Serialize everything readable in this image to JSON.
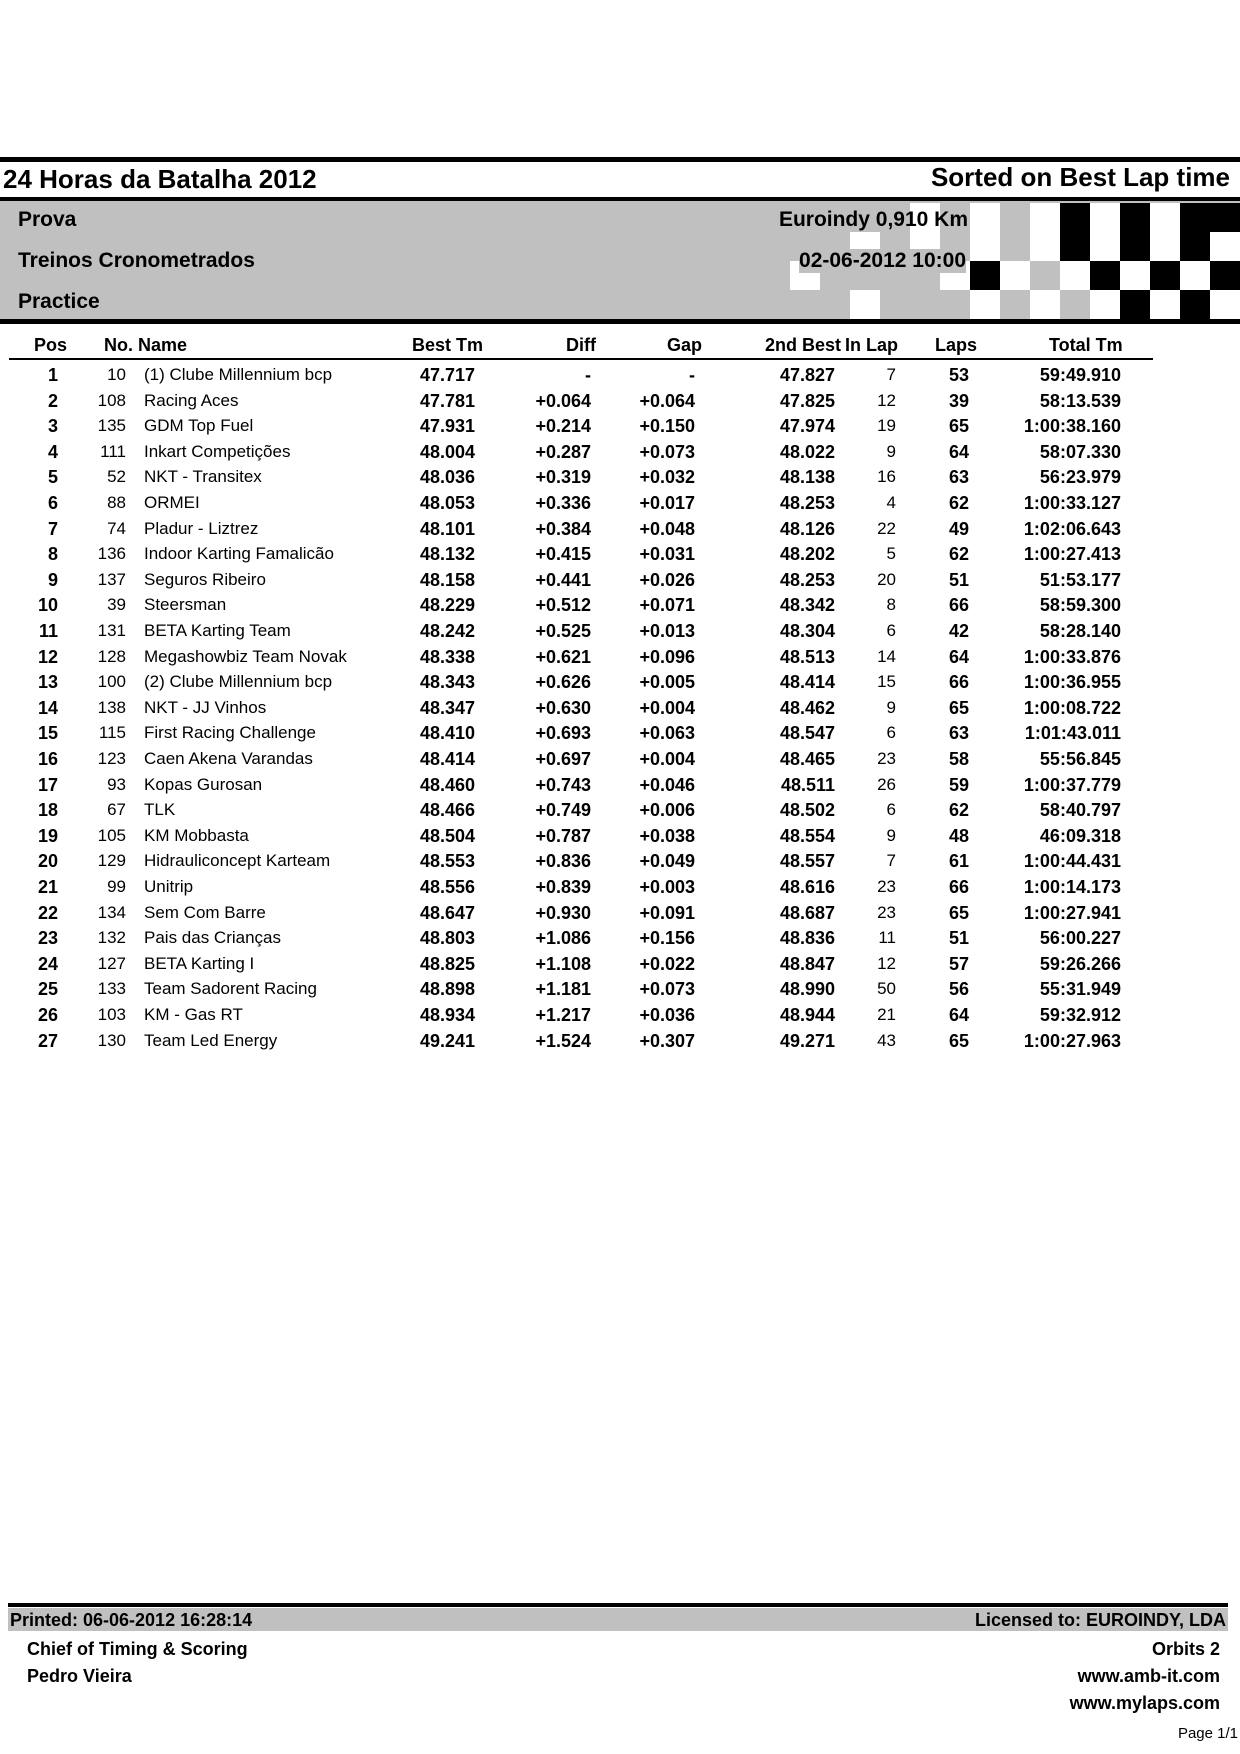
{
  "header": {
    "title": "24 Horas da Batalha 2012",
    "sort_label": "Sorted on Best Lap time",
    "event_type": "Prova",
    "session_name": "Treinos Cronometrados",
    "session_type": "Practice",
    "track": "Euroindy 0,910 Km",
    "datetime": "02-06-2012 10:00"
  },
  "table": {
    "columns": {
      "pos": "Pos",
      "no_name": "No. Name",
      "best": "Best Tm",
      "diff": "Diff",
      "gap": "Gap",
      "second_best": "2nd Best",
      "in_lap": "In Lap",
      "laps": "Laps",
      "total": "Total Tm"
    },
    "rows": [
      {
        "pos": "1",
        "no": "10",
        "name": "(1) Clube Millennium bcp",
        "best": "47.717",
        "diff": "-",
        "gap": "-",
        "second": "47.827",
        "inlap": "7",
        "laps": "53",
        "total": "59:49.910"
      },
      {
        "pos": "2",
        "no": "108",
        "name": "Racing Aces",
        "best": "47.781",
        "diff": "+0.064",
        "gap": "+0.064",
        "second": "47.825",
        "inlap": "12",
        "laps": "39",
        "total": "58:13.539"
      },
      {
        "pos": "3",
        "no": "135",
        "name": "GDM Top Fuel",
        "best": "47.931",
        "diff": "+0.214",
        "gap": "+0.150",
        "second": "47.974",
        "inlap": "19",
        "laps": "65",
        "total": "1:00:38.160"
      },
      {
        "pos": "4",
        "no": "111",
        "name": "Inkart Competições",
        "best": "48.004",
        "diff": "+0.287",
        "gap": "+0.073",
        "second": "48.022",
        "inlap": "9",
        "laps": "64",
        "total": "58:07.330"
      },
      {
        "pos": "5",
        "no": "52",
        "name": "NKT - Transitex",
        "best": "48.036",
        "diff": "+0.319",
        "gap": "+0.032",
        "second": "48.138",
        "inlap": "16",
        "laps": "63",
        "total": "56:23.979"
      },
      {
        "pos": "6",
        "no": "88",
        "name": "ORMEI",
        "best": "48.053",
        "diff": "+0.336",
        "gap": "+0.017",
        "second": "48.253",
        "inlap": "4",
        "laps": "62",
        "total": "1:00:33.127"
      },
      {
        "pos": "7",
        "no": "74",
        "name": "Pladur - Liztrez",
        "best": "48.101",
        "diff": "+0.384",
        "gap": "+0.048",
        "second": "48.126",
        "inlap": "22",
        "laps": "49",
        "total": "1:02:06.643"
      },
      {
        "pos": "8",
        "no": "136",
        "name": "Indoor Karting Famalicão",
        "best": "48.132",
        "diff": "+0.415",
        "gap": "+0.031",
        "second": "48.202",
        "inlap": "5",
        "laps": "62",
        "total": "1:00:27.413"
      },
      {
        "pos": "9",
        "no": "137",
        "name": "Seguros Ribeiro",
        "best": "48.158",
        "diff": "+0.441",
        "gap": "+0.026",
        "second": "48.253",
        "inlap": "20",
        "laps": "51",
        "total": "51:53.177"
      },
      {
        "pos": "10",
        "no": "39",
        "name": "Steersman",
        "best": "48.229",
        "diff": "+0.512",
        "gap": "+0.071",
        "second": "48.342",
        "inlap": "8",
        "laps": "66",
        "total": "58:59.300"
      },
      {
        "pos": "11",
        "no": "131",
        "name": "BETA Karting Team",
        "best": "48.242",
        "diff": "+0.525",
        "gap": "+0.013",
        "second": "48.304",
        "inlap": "6",
        "laps": "42",
        "total": "58:28.140"
      },
      {
        "pos": "12",
        "no": "128",
        "name": "Megashowbiz Team Novak",
        "best": "48.338",
        "diff": "+0.621",
        "gap": "+0.096",
        "second": "48.513",
        "inlap": "14",
        "laps": "64",
        "total": "1:00:33.876"
      },
      {
        "pos": "13",
        "no": "100",
        "name": "(2) Clube Millennium bcp",
        "best": "48.343",
        "diff": "+0.626",
        "gap": "+0.005",
        "second": "48.414",
        "inlap": "15",
        "laps": "66",
        "total": "1:00:36.955"
      },
      {
        "pos": "14",
        "no": "138",
        "name": "NKT - JJ Vinhos",
        "best": "48.347",
        "diff": "+0.630",
        "gap": "+0.004",
        "second": "48.462",
        "inlap": "9",
        "laps": "65",
        "total": "1:00:08.722"
      },
      {
        "pos": "15",
        "no": "115",
        "name": "First Racing Challenge",
        "best": "48.410",
        "diff": "+0.693",
        "gap": "+0.063",
        "second": "48.547",
        "inlap": "6",
        "laps": "63",
        "total": "1:01:43.011"
      },
      {
        "pos": "16",
        "no": "123",
        "name": "Caen Akena Varandas",
        "best": "48.414",
        "diff": "+0.697",
        "gap": "+0.004",
        "second": "48.465",
        "inlap": "23",
        "laps": "58",
        "total": "55:56.845"
      },
      {
        "pos": "17",
        "no": "93",
        "name": "Kopas Gurosan",
        "best": "48.460",
        "diff": "+0.743",
        "gap": "+0.046",
        "second": "48.511",
        "inlap": "26",
        "laps": "59",
        "total": "1:00:37.779"
      },
      {
        "pos": "18",
        "no": "67",
        "name": "TLK",
        "best": "48.466",
        "diff": "+0.749",
        "gap": "+0.006",
        "second": "48.502",
        "inlap": "6",
        "laps": "62",
        "total": "58:40.797"
      },
      {
        "pos": "19",
        "no": "105",
        "name": "KM Mobbasta",
        "best": "48.504",
        "diff": "+0.787",
        "gap": "+0.038",
        "second": "48.554",
        "inlap": "9",
        "laps": "48",
        "total": "46:09.318"
      },
      {
        "pos": "20",
        "no": "129",
        "name": "Hidrauliconcept Karteam",
        "best": "48.553",
        "diff": "+0.836",
        "gap": "+0.049",
        "second": "48.557",
        "inlap": "7",
        "laps": "61",
        "total": "1:00:44.431"
      },
      {
        "pos": "21",
        "no": "99",
        "name": "Unitrip",
        "best": "48.556",
        "diff": "+0.839",
        "gap": "+0.003",
        "second": "48.616",
        "inlap": "23",
        "laps": "66",
        "total": "1:00:14.173"
      },
      {
        "pos": "22",
        "no": "134",
        "name": "Sem Com Barre",
        "best": "48.647",
        "diff": "+0.930",
        "gap": "+0.091",
        "second": "48.687",
        "inlap": "23",
        "laps": "65",
        "total": "1:00:27.941"
      },
      {
        "pos": "23",
        "no": "132",
        "name": "Pais das Crianças",
        "best": "48.803",
        "diff": "+1.086",
        "gap": "+0.156",
        "second": "48.836",
        "inlap": "11",
        "laps": "51",
        "total": "56:00.227"
      },
      {
        "pos": "24",
        "no": "127",
        "name": "BETA Karting I",
        "best": "48.825",
        "diff": "+1.108",
        "gap": "+0.022",
        "second": "48.847",
        "inlap": "12",
        "laps": "57",
        "total": "59:26.266"
      },
      {
        "pos": "25",
        "no": "133",
        "name": "Team Sadorent Racing",
        "best": "48.898",
        "diff": "+1.181",
        "gap": "+0.073",
        "second": "48.990",
        "inlap": "50",
        "laps": "56",
        "total": "55:31.949"
      },
      {
        "pos": "26",
        "no": "103",
        "name": "KM - Gas RT",
        "best": "48.934",
        "diff": "+1.217",
        "gap": "+0.036",
        "second": "48.944",
        "inlap": "21",
        "laps": "64",
        "total": "59:32.912"
      },
      {
        "pos": "27",
        "no": "130",
        "name": "Team Led Energy",
        "best": "49.241",
        "diff": "+1.524",
        "gap": "+0.307",
        "second": "49.271",
        "inlap": "43",
        "laps": "65",
        "total": "1:00:27.963"
      }
    ]
  },
  "footer": {
    "printed": "Printed: 06-06-2012 16:28:14",
    "licensed": "Licensed to:  EUROINDY, LDA",
    "chief_label": "Chief of Timing & Scoring",
    "chief_name": "Pedro Vieira",
    "software": "Orbits 2",
    "url1": "www.amb-it.com",
    "url2": "www.mylaps.com",
    "page": "Page 1/1"
  },
  "colors": {
    "band_grey": "#c0c0c0",
    "ink": "#000000"
  }
}
